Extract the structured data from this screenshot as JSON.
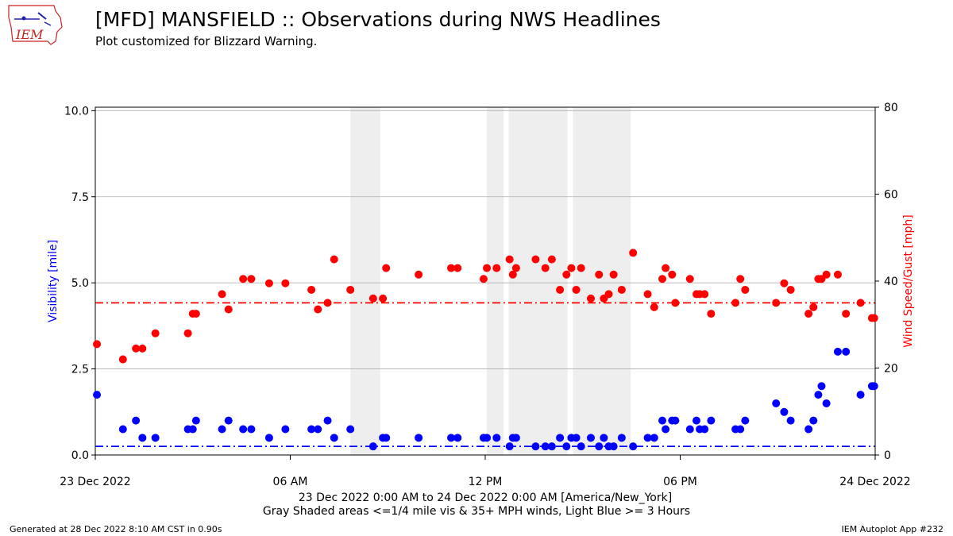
{
  "header": {
    "title": "[MFD] MANSFIELD :: Observations during NWS Headlines",
    "subtitle": "Plot customized for Blizzard Warning.",
    "logo_text": "IEM"
  },
  "footer": {
    "generated": "Generated at 28 Dec 2022 8:10 AM CST in 0.90s",
    "app": "IEM Autoplot App #232"
  },
  "colors": {
    "visibility": "#0000ff",
    "wind": "#ff0000",
    "shade": "#eeeeee",
    "grid": "#b0b0b0"
  },
  "chart_data": {
    "type": "scatter",
    "x_unit": "hours since 23 Dec 2022 00:00 America/New_York",
    "xlim": [
      0,
      24
    ],
    "x_ticks": [
      {
        "x": 0,
        "label": "23 Dec 2022"
      },
      {
        "x": 6,
        "label": "06 AM"
      },
      {
        "x": 12,
        "label": "12 PM"
      },
      {
        "x": 18,
        "label": "06 PM"
      },
      {
        "x": 24,
        "label": "24 Dec 2022"
      }
    ],
    "xlabel_line1": "23 Dec 2022 0:00 AM to 24 Dec 2022 0:00 AM [America/New_York]",
    "xlabel_line2": "Gray Shaded areas <=1/4 mile vis & 35+ MPH winds, Light Blue >= 3 Hours",
    "left_axis": {
      "label": "Visibility [mile]",
      "ylim": [
        0,
        10.1
      ],
      "ticks": [
        0.0,
        2.5,
        5.0,
        7.5,
        10.0
      ],
      "tick_labels": [
        "0.0",
        "2.5",
        "5.0",
        "7.5",
        "10.0"
      ]
    },
    "right_axis": {
      "label": "Wind Speed/Gust [mph]",
      "ylim": [
        0,
        80
      ],
      "ticks": [
        0,
        20,
        40,
        60,
        80
      ],
      "tick_labels": [
        "0",
        "20",
        "40",
        "60",
        "80"
      ]
    },
    "thresholds": {
      "visibility_mile": 0.25,
      "wind_mph": 35
    },
    "shaded_periods": [
      [
        7.85,
        8.77
      ],
      [
        12.05,
        12.57
      ],
      [
        12.72,
        14.53
      ],
      [
        14.7,
        16.48
      ]
    ],
    "series": [
      {
        "name": "Visibility",
        "axis": "left",
        "color": "#0000ff",
        "x": [
          0.05,
          0.85,
          1.25,
          1.45,
          1.85,
          2.85,
          3.0,
          3.1,
          3.9,
          4.1,
          4.55,
          4.8,
          5.35,
          5.85,
          6.65,
          6.85,
          7.15,
          7.35,
          7.85,
          8.55,
          8.85,
          8.95,
          9.95,
          10.95,
          11.15,
          11.95,
          12.05,
          12.35,
          12.75,
          12.85,
          12.95,
          13.55,
          13.85,
          14.05,
          14.3,
          14.5,
          14.65,
          14.8,
          14.95,
          15.25,
          15.5,
          15.65,
          15.8,
          15.95,
          16.2,
          16.55,
          17.0,
          17.2,
          17.45,
          17.55,
          17.75,
          17.85,
          18.3,
          18.5,
          18.6,
          18.75,
          18.95,
          19.7,
          19.85,
          20.0,
          20.95,
          21.2,
          21.4,
          21.95,
          22.1,
          22.25,
          22.35,
          22.5,
          22.85,
          23.1,
          23.55,
          23.9,
          23.97
        ],
        "y": [
          1.75,
          0.75,
          1.0,
          0.5,
          0.5,
          0.75,
          0.75,
          1.0,
          0.75,
          1.0,
          0.75,
          0.75,
          0.5,
          0.75,
          0.75,
          0.75,
          1.0,
          0.5,
          0.75,
          0.25,
          0.5,
          0.5,
          0.5,
          0.5,
          0.5,
          0.5,
          0.5,
          0.5,
          0.25,
          0.5,
          0.5,
          0.25,
          0.25,
          0.25,
          0.5,
          0.25,
          0.5,
          0.5,
          0.25,
          0.5,
          0.25,
          0.5,
          0.25,
          0.25,
          0.5,
          0.25,
          0.5,
          0.5,
          1.0,
          0.75,
          1.0,
          1.0,
          0.75,
          1.0,
          0.75,
          0.75,
          1.0,
          0.75,
          0.75,
          1.0,
          1.5,
          1.25,
          1.0,
          0.75,
          1.0,
          1.75,
          2.0,
          1.5,
          3.0,
          3.0,
          1.75,
          2.0,
          2.0
        ]
      },
      {
        "name": "Wind Speed/Gust",
        "axis": "right",
        "color": "#ff0000",
        "x": [
          0.05,
          0.85,
          1.25,
          1.45,
          1.85,
          2.85,
          3.0,
          3.1,
          3.9,
          4.1,
          4.55,
          4.8,
          5.35,
          5.85,
          6.65,
          6.85,
          7.15,
          7.35,
          7.85,
          8.55,
          8.85,
          8.95,
          9.95,
          10.95,
          11.15,
          11.95,
          12.05,
          12.35,
          12.75,
          12.85,
          12.95,
          13.55,
          13.85,
          14.05,
          14.3,
          14.5,
          14.65,
          14.8,
          14.95,
          15.25,
          15.5,
          15.65,
          15.8,
          15.95,
          16.2,
          16.55,
          17.0,
          17.2,
          17.45,
          17.55,
          17.75,
          17.85,
          18.3,
          18.5,
          18.6,
          18.75,
          18.95,
          19.7,
          19.85,
          20.0,
          20.95,
          21.2,
          21.4,
          21.95,
          22.1,
          22.25,
          22.35,
          22.5,
          22.85,
          23.1,
          23.55,
          23.9,
          23.97
        ],
        "y": [
          25.5,
          22,
          24.5,
          24.5,
          28,
          28,
          32.5,
          32.5,
          37,
          33.5,
          40.5,
          40.5,
          39.5,
          39.5,
          38,
          33.5,
          35,
          45,
          38,
          36,
          36,
          43,
          41.5,
          43,
          43,
          40.5,
          43,
          43,
          45,
          41.5,
          43,
          45,
          43,
          45,
          38,
          41.5,
          43,
          38,
          43,
          36,
          41.5,
          36,
          37,
          41.5,
          38,
          46.5,
          37,
          34,
          40.5,
          43,
          41.5,
          35,
          40.5,
          37,
          37,
          37,
          32.5,
          35,
          40.5,
          38,
          35,
          39.5,
          38,
          32.5,
          34,
          40.5,
          40.5,
          41.5,
          41.5,
          32.5,
          35,
          31.5,
          31.5
        ]
      }
    ]
  }
}
